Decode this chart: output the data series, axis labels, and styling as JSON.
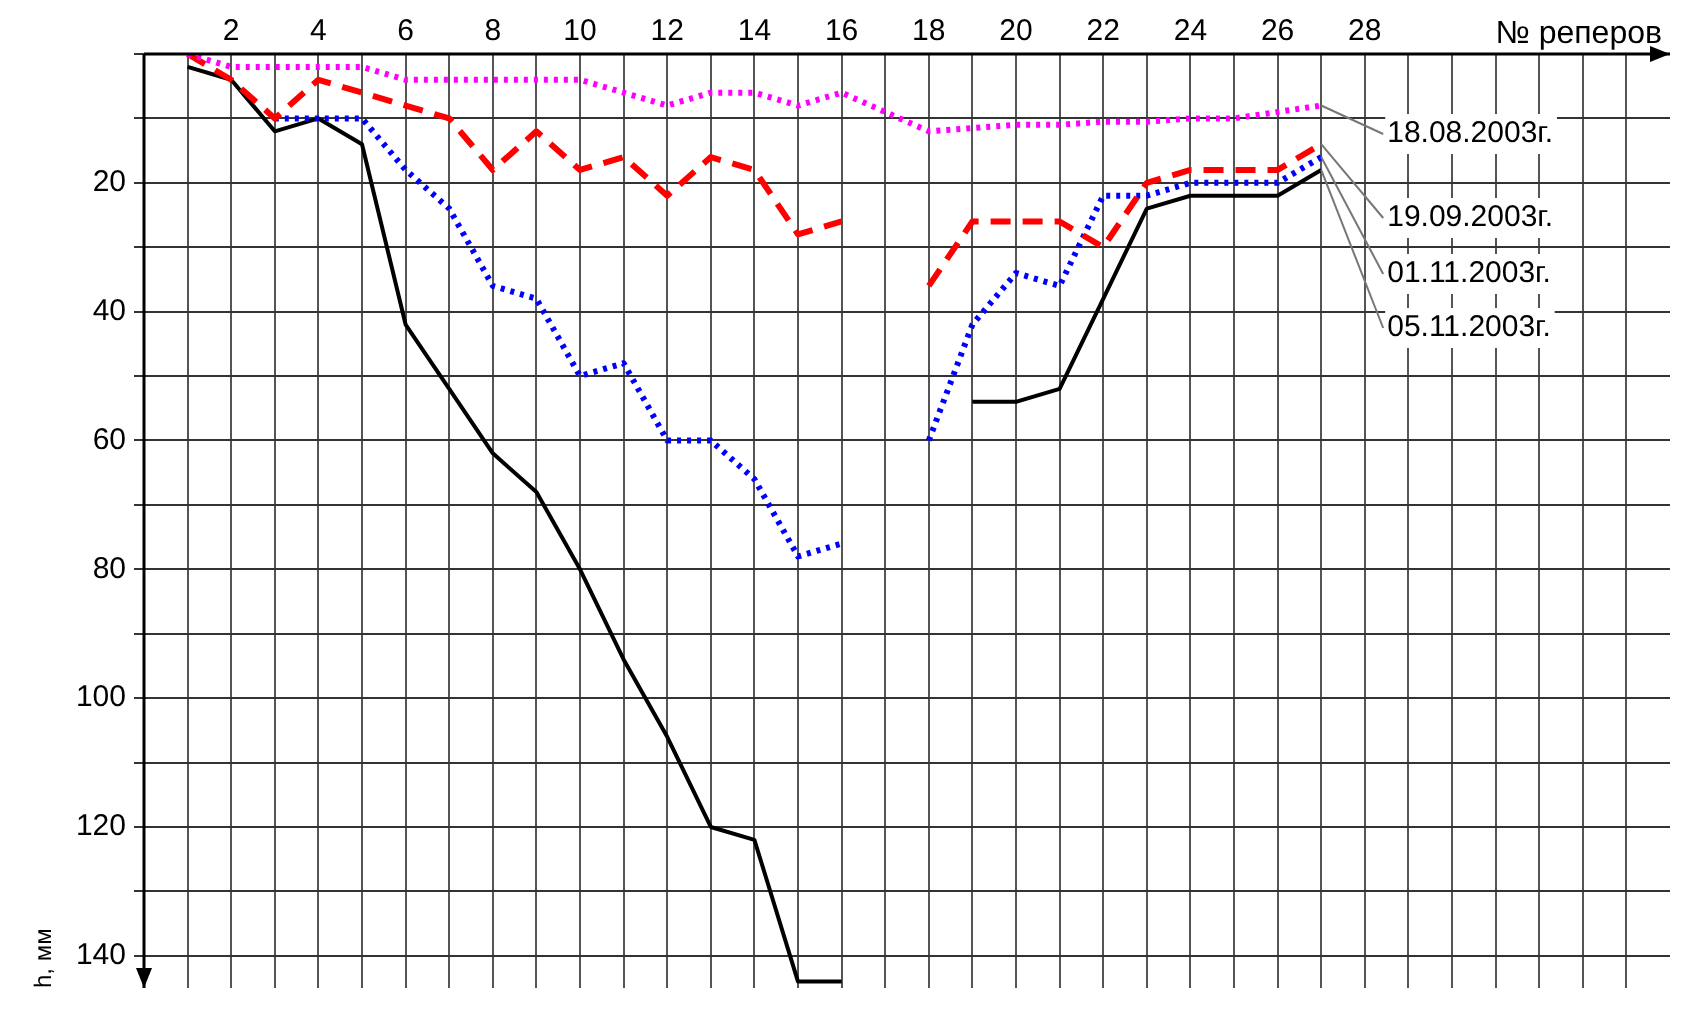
{
  "chart_data": {
    "type": "line",
    "xlabel": "№ реперов",
    "ylabel": "h, мм",
    "x": [
      1,
      2,
      3,
      4,
      5,
      6,
      7,
      8,
      9,
      10,
      11,
      12,
      13,
      14,
      15,
      16,
      17,
      18,
      19,
      20,
      21,
      22,
      23,
      24,
      25,
      26,
      27
    ],
    "series": [
      {
        "name": "18.08.2003г.",
        "color": "#ff00ff",
        "line_style": "dotted",
        "values": [
          0,
          2,
          2,
          2,
          2,
          4,
          4,
          4,
          4,
          4,
          6,
          8,
          6,
          6,
          8,
          6,
          9,
          12,
          11.5,
          11,
          11,
          10.5,
          10.5,
          10,
          10,
          9,
          8
        ]
      },
      {
        "name": "19.09.2003г.",
        "color": "#ff0000",
        "line_style": "dashed",
        "values": [
          0,
          4,
          10,
          4,
          6,
          8,
          10,
          18,
          12,
          18,
          16,
          22,
          16,
          18,
          28,
          26,
          null,
          36,
          26,
          26,
          26,
          30,
          20,
          18,
          18,
          18,
          14
        ]
      },
      {
        "name": "01.11.2003г.",
        "color": "#0000ff",
        "line_style": "dotted",
        "values": [
          null,
          null,
          10,
          10,
          10,
          18,
          24,
          36,
          38,
          50,
          48,
          60,
          60,
          66,
          78,
          76,
          null,
          60,
          42,
          34,
          36,
          22,
          22,
          20,
          20,
          20,
          16
        ]
      },
      {
        "name": "05.11.2003г.",
        "color": "#000000",
        "line_style": "solid",
        "values": [
          2,
          4,
          12,
          10,
          14,
          42,
          52,
          62,
          68,
          80,
          94,
          106,
          120,
          122,
          144,
          144,
          null,
          null,
          54,
          54,
          52,
          38,
          24,
          22,
          22,
          22,
          18
        ]
      }
    ],
    "xlim": [
      0,
      35
    ],
    "xticks": [
      {
        "value": 0,
        "label": null
      },
      {
        "value": 1,
        "label": null
      },
      2,
      {
        "value": 3,
        "label": null
      },
      4,
      {
        "value": 5,
        "label": null
      },
      6,
      {
        "value": 7,
        "label": null
      },
      8,
      {
        "value": 9,
        "label": null
      },
      10,
      {
        "value": 11,
        "label": null
      },
      12,
      {
        "value": 13,
        "label": null
      },
      14,
      {
        "value": 15,
        "label": null
      },
      16,
      {
        "value": 17,
        "label": null
      },
      18,
      {
        "value": 19,
        "label": null
      },
      20,
      {
        "value": 21,
        "label": null
      },
      22,
      {
        "value": 23,
        "label": null
      },
      24,
      {
        "value": 25,
        "label": null
      },
      26,
      {
        "value": 27,
        "label": null
      },
      28,
      {
        "value": 29,
        "label": null
      },
      {
        "value": 30,
        "label": null
      },
      {
        "value": 31,
        "label": null
      },
      {
        "value": 32,
        "label": null
      },
      {
        "value": 33,
        "label": null
      },
      {
        "value": 34,
        "label": null
      }
    ],
    "ylim": [
      145,
      0
    ],
    "yticks": [
      {
        "value": 0,
        "label": null
      },
      {
        "value": 10,
        "label": null
      },
      20,
      {
        "value": 30,
        "label": null
      },
      40,
      {
        "value": 50,
        "label": null
      },
      60,
      {
        "value": 70,
        "label": null
      },
      80,
      {
        "value": 90,
        "label": null
      },
      100,
      {
        "value": 110,
        "label": null
      },
      120,
      {
        "value": 130,
        "label": null
      },
      140
    ],
    "grid": true,
    "legend": false
  }
}
